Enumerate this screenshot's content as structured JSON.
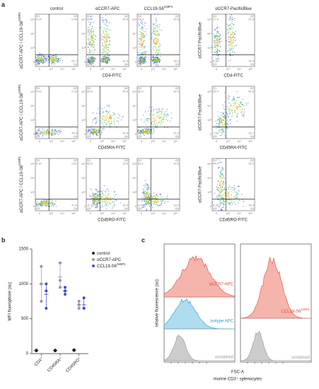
{
  "panel_labels": [
    "a",
    "b",
    "c"
  ],
  "panel_a": {
    "columns": [
      {
        "text": "control"
      },
      {
        "text": "αCCR7-APC"
      },
      {
        "text": "CCL19-S6",
        "sup": "S49P1"
      },
      {
        "text": "αCCR7-PacificBlue"
      }
    ],
    "y_label": {
      "text": "αCCR7-APC / CCL19-S6",
      "sup": "S49P1"
    },
    "y_label_right": "αCCR7-PacificBlue",
    "x_labels": [
      "CD4-FITC",
      "CD45RA-FITC",
      "CD45RO-FITC"
    ],
    "quadrant_names": [
      "Q1",
      "Q2",
      "Q3",
      "Q4"
    ],
    "x_ticks": [
      "0",
      "10³",
      "10⁴",
      "10⁵"
    ],
    "y_ticks": [
      "10⁵",
      "10⁴",
      "10³",
      "0"
    ],
    "quadrants": [
      [
        [
          "0.24",
          "0.49",
          "37.6",
          "61.7"
        ],
        [
          "24.6",
          "42.5",
          "13.6",
          "19.3"
        ],
        [
          "24.3",
          "42.8",
          "14.8",
          "18.2"
        ],
        [
          "27.6",
          "51.8",
          "6.56",
          "14.0"
        ]
      ],
      [
        [
          "0.42",
          "0.32",
          "50.0",
          "49.3"
        ],
        [
          "25.9",
          "44.3",
          "5.26",
          "24.5"
        ],
        [
          "30.0",
          "42.4",
          "6.26",
          "21.4"
        ],
        [
          "35.0",
          "40.8",
          "7.54",
          "16.7"
        ]
      ],
      [
        [
          "0.30",
          "0.61",
          "51.5",
          "47.6"
        ],
        [
          "53.5",
          "19.5",
          "12.6",
          "14.4"
        ],
        [
          "53.2",
          "23.8",
          "9.97",
          "13.0"
        ],
        [
          "44.0",
          "34.2",
          "5.35",
          "16.4"
        ]
      ]
    ]
  },
  "chart_data": {
    "type": "scatter",
    "y_label": "MFI fluorophore (au)",
    "categories": [
      "CD4⁺",
      "CD45RA⁺",
      "CD45RO⁺"
    ],
    "ylim": [
      0,
      1500
    ],
    "yticks": [
      0,
      500,
      1000,
      1500
    ],
    "series": [
      {
        "name": "control",
        "color": "#222222",
        "values": [
          45,
          45,
          50
        ],
        "points": [
          [
            40,
            45,
            50
          ],
          [
            40,
            45,
            50
          ],
          [
            45,
            50,
            55
          ]
        ]
      },
      {
        "name": "αCCR7-APC",
        "color": "#9a8fb0",
        "values": [
          1000,
          1100,
          700
        ],
        "points": [
          [
            1250,
            1000,
            750
          ],
          [
            1300,
            1050,
            950
          ],
          [
            650,
            750,
            700
          ]
        ]
      },
      {
        "name": "CCL19-S6",
        "name_sup": "S49P1",
        "color": "#3f4fc8",
        "values": [
          850,
          900,
          700
        ],
        "points": [
          [
            1000,
            900,
            650
          ],
          [
            950,
            850,
            900
          ],
          [
            800,
            650,
            650
          ]
        ]
      }
    ]
  },
  "panel_c": {
    "y_label": "relative fluorescence (au)",
    "x_label": "FSC-A",
    "x_sublabel": "murine CD3⁺ splenocytes",
    "left": [
      "αCCR7-APC",
      "isotype APC",
      "unstained"
    ],
    "right": [
      {
        "text": "CCL19-S6",
        "sup": "S49P1"
      },
      {
        "text": "unstained"
      }
    ]
  }
}
